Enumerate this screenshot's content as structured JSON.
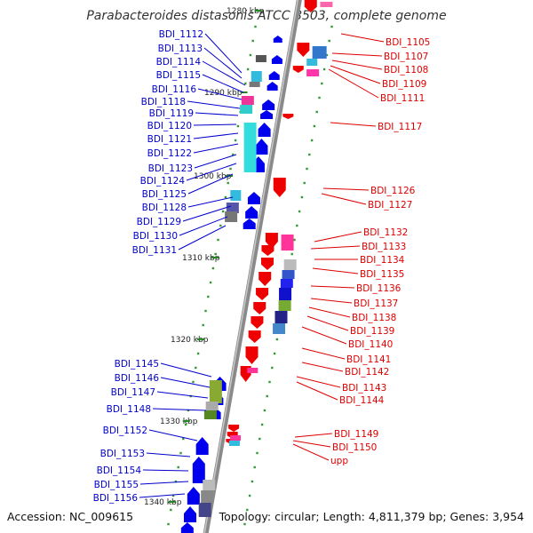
{
  "title": "Parabacteroides distasonis ATCC 8503, complete genome",
  "footer": {
    "accession": "Accession: NC_009615",
    "topology": "Topology: circular; Length: 4,811,379 bp; Genes: 3,954"
  },
  "colors": {
    "forward_gene": "#0000ee",
    "reverse_gene": "#ee0000",
    "forward_label": "#0000cc",
    "reverse_label": "#dd0000",
    "backbone": "#999999",
    "tick": "#228822"
  },
  "scale_labels": [
    {
      "text": "1280 kbp"
    },
    {
      "text": "1290 kbp"
    },
    {
      "text": "1300 kbp"
    },
    {
      "text": "1310 kbp"
    },
    {
      "text": "1320 kbp"
    },
    {
      "text": "1330 kbp"
    },
    {
      "text": "1340 kbp"
    }
  ],
  "left_genes": [
    "BDI_1112",
    "BDI_1113",
    "BDI_1114",
    "BDI_1115",
    "BDI_1116",
    "BDI_1118",
    "BDI_1119",
    "BDI_1120",
    "BDI_1121",
    "BDI_1122",
    "BDI_1123",
    "BDI_1124",
    "BDI_1125",
    "BDI_1128",
    "BDI_1129",
    "BDI_1130",
    "BDI_1131",
    "BDI_1145",
    "BDI_1146",
    "BDI_1147",
    "BDI_1148",
    "BDI_1152",
    "BDI_1153",
    "BDI_1154",
    "BDI_1155",
    "BDI_1156"
  ],
  "right_genes": [
    "BDI_1105",
    "BDI_1107",
    "BDI_1108",
    "BDI_1109",
    "BDI_1111",
    "BDI_1117",
    "BDI_1126",
    "BDI_1127",
    "BDI_1132",
    "BDI_1133",
    "BDI_1134",
    "BDI_1135",
    "BDI_1136",
    "BDI_1137",
    "BDI_1138",
    "BDI_1139",
    "BDI_1140",
    "BDI_1141",
    "BDI_1142",
    "BDI_1143",
    "BDI_1144",
    "BDI_1149",
    "BDI_1150",
    "upp"
  ]
}
